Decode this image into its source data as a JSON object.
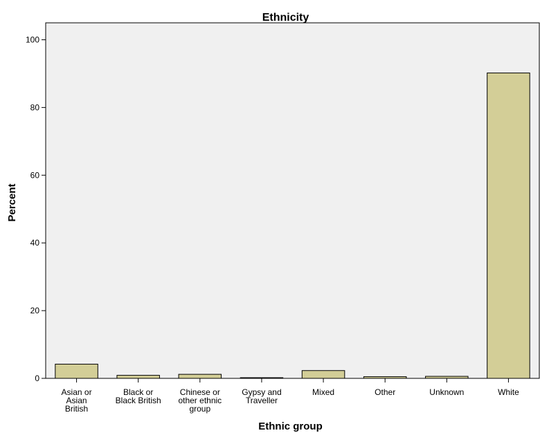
{
  "chart_data": {
    "type": "bar",
    "title": "Ethnicity",
    "xlabel": "Ethnic group",
    "ylabel": "Percent",
    "categories": [
      [
        "Asian or",
        "Asian",
        "British"
      ],
      [
        "Black or",
        "Black British"
      ],
      [
        "Chinese or",
        "other ethnic",
        "group"
      ],
      [
        "Gypsy and",
        "Traveller"
      ],
      [
        "Mixed"
      ],
      [
        "Other"
      ],
      [
        "Unknown"
      ],
      [
        "White"
      ]
    ],
    "values": [
      4.2,
      0.9,
      1.2,
      0.2,
      2.3,
      0.5,
      0.6,
      90.2
    ],
    "ylim": [
      0,
      105
    ],
    "yticks": [
      0,
      20,
      40,
      60,
      80,
      100
    ],
    "grid": false,
    "colors": {
      "bar_fill": "#d3ce97",
      "bar_stroke": "#000000",
      "plot_bg": "#f0f0f0"
    }
  }
}
